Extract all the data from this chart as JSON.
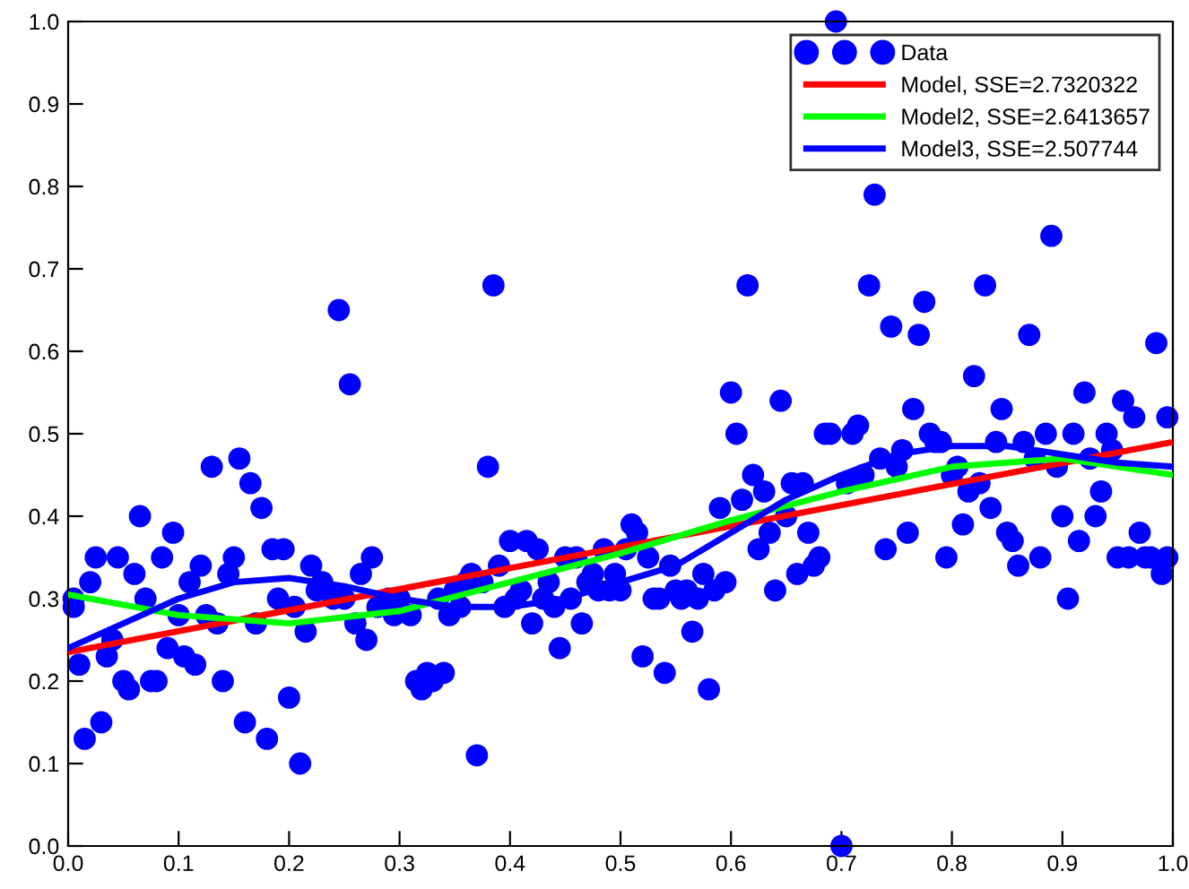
{
  "chart_data": {
    "type": "scatter",
    "xlim": [
      0,
      1
    ],
    "ylim": [
      0,
      1
    ],
    "xticks": [
      {
        "value": 0,
        "label": "0.0"
      },
      0.1,
      0.2,
      0.3,
      0.4,
      0.5,
      0.6,
      0.7,
      0.8,
      0.9,
      {
        "value": 1,
        "label": "1.0"
      }
    ],
    "yticks": [
      {
        "value": 0,
        "label": "0.0"
      },
      0.1,
      0.2,
      0.3,
      0.4,
      0.5,
      0.6,
      0.7,
      0.8,
      0.9,
      {
        "value": 1,
        "label": "1.0"
      }
    ],
    "grid": false,
    "legend": "top right",
    "series": [
      {
        "name": "Data",
        "marker": "circle",
        "color": "#0000ff",
        "x": [
          0.005,
          0.005,
          0.01,
          0.015,
          0.02,
          0.025,
          0.03,
          0.035,
          0.04,
          0.045,
          0.05,
          0.055,
          0.06,
          0.065,
          0.07,
          0.075,
          0.08,
          0.085,
          0.09,
          0.095,
          0.1,
          0.105,
          0.11,
          0.115,
          0.12,
          0.125,
          0.13,
          0.135,
          0.14,
          0.145,
          0.15,
          0.155,
          0.16,
          0.165,
          0.17,
          0.175,
          0.18,
          0.185,
          0.19,
          0.195,
          0.2,
          0.205,
          0.21,
          0.215,
          0.22,
          0.225,
          0.23,
          0.24,
          0.245,
          0.25,
          0.255,
          0.26,
          0.265,
          0.27,
          0.275,
          0.28,
          0.29,
          0.295,
          0.3,
          0.31,
          0.315,
          0.32,
          0.325,
          0.33,
          0.335,
          0.34,
          0.345,
          0.35,
          0.355,
          0.36,
          0.365,
          0.37,
          0.375,
          0.38,
          0.385,
          0.39,
          0.395,
          0.4,
          0.405,
          0.41,
          0.415,
          0.42,
          0.425,
          0.43,
          0.435,
          0.44,
          0.445,
          0.45,
          0.455,
          0.46,
          0.465,
          0.47,
          0.475,
          0.48,
          0.485,
          0.49,
          0.495,
          0.5,
          0.505,
          0.51,
          0.515,
          0.52,
          0.525,
          0.53,
          0.535,
          0.54,
          0.545,
          0.55,
          0.555,
          0.56,
          0.565,
          0.57,
          0.575,
          0.58,
          0.585,
          0.59,
          0.595,
          0.6,
          0.605,
          0.61,
          0.615,
          0.62,
          0.625,
          0.63,
          0.635,
          0.64,
          0.645,
          0.65,
          0.655,
          0.66,
          0.665,
          0.67,
          0.675,
          0.68,
          0.685,
          0.69,
          0.695,
          0.7,
          0.705,
          0.71,
          0.715,
          0.72,
          0.725,
          0.73,
          0.735,
          0.74,
          0.745,
          0.75,
          0.755,
          0.76,
          0.765,
          0.77,
          0.775,
          0.78,
          0.785,
          0.79,
          0.795,
          0.8,
          0.805,
          0.81,
          0.815,
          0.82,
          0.825,
          0.83,
          0.835,
          0.84,
          0.845,
          0.85,
          0.855,
          0.86,
          0.865,
          0.87,
          0.875,
          0.88,
          0.885,
          0.89,
          0.895,
          0.9,
          0.905,
          0.91,
          0.915,
          0.92,
          0.925,
          0.93,
          0.935,
          0.94,
          0.945,
          0.95,
          0.955,
          0.96,
          0.965,
          0.97,
          0.975,
          0.98,
          0.985,
          0.99,
          0.995,
          0.995
        ],
        "values": [
          0.29,
          0.3,
          0.22,
          0.13,
          0.32,
          0.35,
          0.15,
          0.23,
          0.25,
          0.35,
          0.2,
          0.19,
          0.33,
          0.4,
          0.3,
          0.2,
          0.2,
          0.35,
          0.24,
          0.38,
          0.28,
          0.23,
          0.32,
          0.22,
          0.34,
          0.28,
          0.46,
          0.27,
          0.2,
          0.33,
          0.35,
          0.47,
          0.15,
          0.44,
          0.27,
          0.41,
          0.13,
          0.36,
          0.3,
          0.36,
          0.18,
          0.29,
          0.1,
          0.26,
          0.34,
          0.31,
          0.32,
          0.3,
          0.65,
          0.3,
          0.56,
          0.27,
          0.33,
          0.25,
          0.35,
          0.29,
          0.3,
          0.28,
          0.3,
          0.28,
          0.2,
          0.19,
          0.21,
          0.2,
          0.3,
          0.21,
          0.28,
          0.31,
          0.29,
          0.32,
          0.33,
          0.11,
          0.32,
          0.46,
          0.68,
          0.34,
          0.29,
          0.37,
          0.3,
          0.31,
          0.37,
          0.27,
          0.36,
          0.3,
          0.32,
          0.29,
          0.24,
          0.35,
          0.3,
          0.35,
          0.27,
          0.32,
          0.33,
          0.31,
          0.36,
          0.31,
          0.33,
          0.31,
          0.36,
          0.39,
          0.38,
          0.23,
          0.35,
          0.3,
          0.3,
          0.21,
          0.34,
          0.31,
          0.3,
          0.31,
          0.26,
          0.3,
          0.33,
          0.19,
          0.31,
          0.41,
          0.32,
          0.55,
          0.5,
          0.42,
          0.68,
          0.45,
          0.36,
          0.43,
          0.38,
          0.31,
          0.54,
          0.4,
          0.44,
          0.33,
          0.44,
          0.38,
          0.34,
          0.35,
          0.5,
          0.5,
          1.0,
          0.0,
          0.44,
          0.5,
          0.51,
          0.45,
          0.68,
          0.79,
          0.47,
          0.36,
          0.63,
          0.46,
          0.48,
          0.38,
          0.53,
          0.62,
          0.66,
          0.5,
          0.49,
          0.49,
          0.35,
          0.45,
          0.46,
          0.39,
          0.43,
          0.57,
          0.44,
          0.68,
          0.41,
          0.49,
          0.53,
          0.38,
          0.37,
          0.34,
          0.49,
          0.62,
          0.47,
          0.35,
          0.5,
          0.74,
          0.46,
          0.4,
          0.3,
          0.5,
          0.37,
          0.55,
          0.47,
          0.4,
          0.43,
          0.5,
          0.48,
          0.35,
          0.54,
          0.35,
          0.52,
          0.38,
          0.35,
          0.35,
          0.61,
          0.33,
          0.52,
          0.35
        ]
      },
      {
        "name": "Model, SSE=2.7320322",
        "type": "line",
        "marker": "none",
        "color": "#ff0000",
        "x": [
          0,
          1
        ],
        "values": [
          0.235,
          0.49
        ]
      },
      {
        "name": "Model2, SSE=2.6413657",
        "type": "line",
        "marker": "none",
        "color": "#00ff00",
        "x": [
          0,
          0.1,
          0.2,
          0.3,
          0.4,
          0.5,
          0.6,
          0.7,
          0.8,
          0.9,
          1.0
        ],
        "values": [
          0.305,
          0.28,
          0.27,
          0.285,
          0.32,
          0.355,
          0.395,
          0.43,
          0.46,
          0.47,
          0.45
        ]
      },
      {
        "name": "Model3, SSE=2.507744",
        "type": "line",
        "marker": "none",
        "color": "#0000ff",
        "x": [
          0,
          0.05,
          0.1,
          0.15,
          0.2,
          0.25,
          0.3,
          0.35,
          0.4,
          0.45,
          0.5,
          0.55,
          0.6,
          0.65,
          0.7,
          0.75,
          0.8,
          0.85,
          0.9,
          0.95,
          1.0
        ],
        "values": [
          0.24,
          0.27,
          0.3,
          0.32,
          0.325,
          0.315,
          0.3,
          0.29,
          0.29,
          0.3,
          0.32,
          0.34,
          0.38,
          0.42,
          0.45,
          0.475,
          0.485,
          0.485,
          0.475,
          0.465,
          0.46
        ]
      }
    ]
  }
}
